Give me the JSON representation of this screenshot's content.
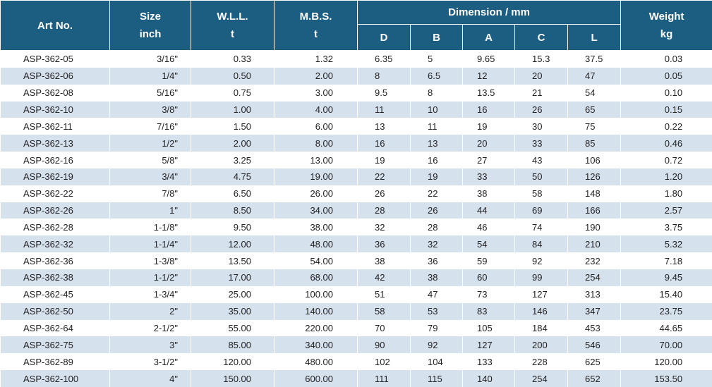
{
  "headers": {
    "art_no": "Art No.",
    "size": [
      "Size",
      "inch"
    ],
    "wll": [
      "W.L.L.",
      "t"
    ],
    "mbs": [
      "M.B.S.",
      "t"
    ],
    "dimension": "Dimension / mm",
    "dim_cols": [
      "D",
      "B",
      "A",
      "C",
      "L"
    ],
    "weight": [
      "Weight",
      "kg"
    ]
  },
  "rows": [
    [
      "ASP-362-05",
      "3/16\"",
      "0.33",
      "1.32",
      "6.35",
      "5",
      "9.65",
      "15.3",
      "37.5",
      "0.03"
    ],
    [
      "ASP-362-06",
      "1/4\"",
      "0.50",
      "2.00",
      "8",
      "6.5",
      "12",
      "20",
      "47",
      "0.05"
    ],
    [
      "ASP-362-08",
      "5/16\"",
      "0.75",
      "3.00",
      "9.5",
      "8",
      "13.5",
      "21",
      "54",
      "0.10"
    ],
    [
      "ASP-362-10",
      "3/8\"",
      "1.00",
      "4.00",
      "11",
      "10",
      "16",
      "26",
      "65",
      "0.15"
    ],
    [
      "ASP-362-11",
      "7/16\"",
      "1.50",
      "6.00",
      "13",
      "11",
      "19",
      "30",
      "75",
      "0.22"
    ],
    [
      "ASP-362-13",
      "1/2\"",
      "2.00",
      "8.00",
      "16",
      "13",
      "20",
      "33",
      "85",
      "0.46"
    ],
    [
      "ASP-362-16",
      "5/8\"",
      "3.25",
      "13.00",
      "19",
      "16",
      "27",
      "43",
      "106",
      "0.72"
    ],
    [
      "ASP-362-19",
      "3/4\"",
      "4.75",
      "19.00",
      "22",
      "19",
      "33",
      "50",
      "126",
      "1.20"
    ],
    [
      "ASP-362-22",
      "7/8\"",
      "6.50",
      "26.00",
      "26",
      "22",
      "38",
      "58",
      "148",
      "1.80"
    ],
    [
      "ASP-362-26",
      "1\"",
      "8.50",
      "34.00",
      "28",
      "26",
      "44",
      "69",
      "166",
      "2.57"
    ],
    [
      "ASP-362-28",
      "1-1/8\"",
      "9.50",
      "38.00",
      "32",
      "28",
      "46",
      "74",
      "190",
      "3.75"
    ],
    [
      "ASP-362-32",
      "1-1/4\"",
      "12.00",
      "48.00",
      "36",
      "32",
      "54",
      "84",
      "210",
      "5.32"
    ],
    [
      "ASP-362-36",
      "1-3/8\"",
      "13.50",
      "54.00",
      "38",
      "36",
      "59",
      "92",
      "232",
      "7.18"
    ],
    [
      "ASP-362-38",
      "1-1/2\"",
      "17.00",
      "68.00",
      "42",
      "38",
      "60",
      "99",
      "254",
      "9.45"
    ],
    [
      "ASP-362-45",
      "1-3/4\"",
      "25.00",
      "100.00",
      "51",
      "47",
      "73",
      "127",
      "313",
      "15.40"
    ],
    [
      "ASP-362-50",
      "2\"",
      "35.00",
      "140.00",
      "58",
      "53",
      "83",
      "146",
      "347",
      "23.75"
    ],
    [
      "ASP-362-64",
      "2-1/2\"",
      "55.00",
      "220.00",
      "70",
      "79",
      "105",
      "184",
      "453",
      "44.65"
    ],
    [
      "ASP-362-75",
      "3\"",
      "85.00",
      "340.00",
      "90",
      "92",
      "127",
      "200",
      "546",
      "70.00"
    ],
    [
      "ASP-362-89",
      "3-1/2\"",
      "120.00",
      "480.00",
      "102",
      "104",
      "133",
      "228",
      "625",
      "120.00"
    ],
    [
      "ASP-362-100",
      "4\"",
      "150.00",
      "600.00",
      "111",
      "115",
      "140",
      "254",
      "652",
      "153.50"
    ]
  ]
}
